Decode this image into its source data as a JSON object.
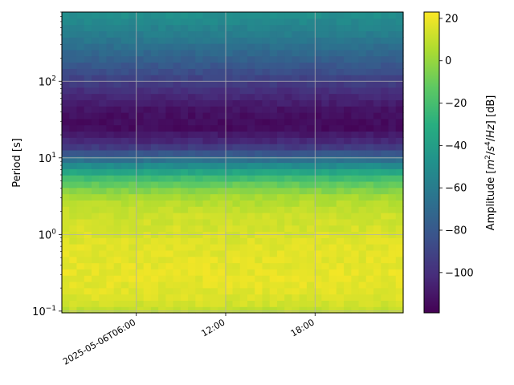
{
  "chart_data": {
    "type": "heatmap",
    "title": "",
    "xlabel": "",
    "ylabel": "Period [s]",
    "colorbar_label_parts": [
      "Amplitude [",
      "m",
      "2",
      "/",
      "s",
      "4",
      "/",
      "Hz",
      "] [dB]"
    ],
    "colormap": "viridis",
    "yscale": "log",
    "ylim": [
      0.095,
      800
    ],
    "xlim": [
      "2025-05-06T01:00",
      "2025-05-06T23:55"
    ],
    "x_ticks": [
      {
        "t": "2025-05-06T06:00",
        "label": "2025-05-06T06:00"
      },
      {
        "t": "2025-05-06T12:00",
        "label": "12:00"
      },
      {
        "t": "2025-05-06T18:00",
        "label": "18:00"
      }
    ],
    "y_ticks": [
      {
        "value": 0.1,
        "base": "10",
        "exp": "−1"
      },
      {
        "value": 1,
        "base": "10",
        "exp": "0"
      },
      {
        "value": 10,
        "base": "10",
        "exp": "1"
      },
      {
        "value": 100,
        "base": "10",
        "exp": "2"
      }
    ],
    "colorbar": {
      "range": [
        -119,
        23
      ],
      "ticks": [
        {
          "value": 20,
          "label": "20"
        },
        {
          "value": 0,
          "label": "0"
        },
        {
          "value": -20,
          "label": "−20"
        },
        {
          "value": -40,
          "label": "−40"
        },
        {
          "value": -60,
          "label": "−60"
        },
        {
          "value": -80,
          "label": "−80"
        },
        {
          "value": -100,
          "label": "−100"
        }
      ]
    },
    "grid": true,
    "time_bins": 46,
    "period_profile_db": [
      {
        "period": 0.095,
        "db": 8
      },
      {
        "period": 0.13,
        "db": 14
      },
      {
        "period": 0.18,
        "db": 17
      },
      {
        "period": 0.3,
        "db": 18
      },
      {
        "period": 0.6,
        "db": 17
      },
      {
        "period": 1.0,
        "db": 15
      },
      {
        "period": 1.8,
        "db": 12
      },
      {
        "period": 3.0,
        "db": 5
      },
      {
        "period": 5.0,
        "db": -15
      },
      {
        "period": 7.0,
        "db": -40
      },
      {
        "period": 10.0,
        "db": -70
      },
      {
        "period": 15.0,
        "db": -100
      },
      {
        "period": 25.0,
        "db": -115
      },
      {
        "period": 40.0,
        "db": -113
      },
      {
        "period": 70.0,
        "db": -102
      },
      {
        "period": 120.0,
        "db": -88
      },
      {
        "period": 200.0,
        "db": -75
      },
      {
        "period": 400.0,
        "db": -60
      },
      {
        "period": 800.0,
        "db": -48
      }
    ]
  }
}
